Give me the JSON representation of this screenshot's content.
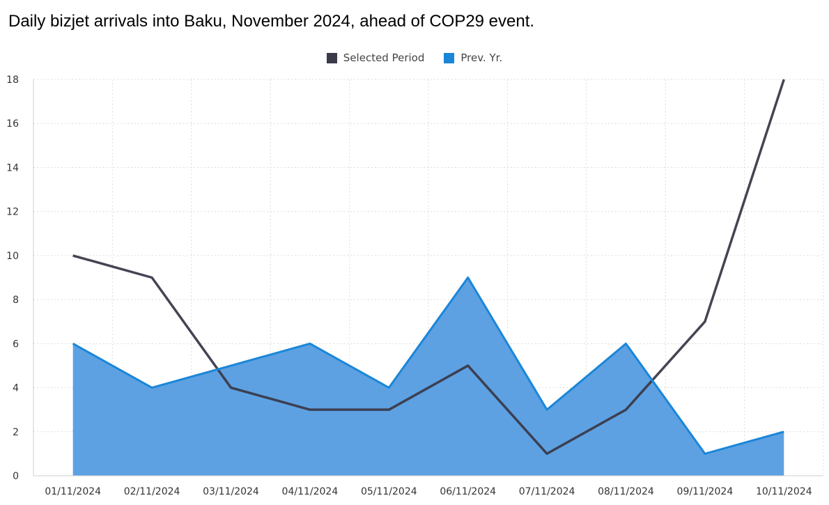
{
  "chart_data": {
    "type": "area",
    "title": "Daily bizjet arrivals into Baku, November 2024, ahead of COP29 event.",
    "categories": [
      "01/11/2024",
      "02/11/2024",
      "03/11/2024",
      "04/11/2024",
      "05/11/2024",
      "06/11/2024",
      "07/11/2024",
      "08/11/2024",
      "09/11/2024",
      "10/11/2024"
    ],
    "series": [
      {
        "name": "Selected Period",
        "type": "line",
        "color": "#3a3a4a",
        "values": [
          10,
          9,
          4,
          3,
          3,
          5,
          1,
          3,
          7,
          18
        ]
      },
      {
        "name": "Prev. Yr.",
        "type": "area",
        "color": "#1a86d8",
        "fill": "#5da1e2",
        "values": [
          6,
          4,
          5,
          6,
          4,
          9,
          3,
          6,
          1,
          2
        ]
      }
    ],
    "ylim": [
      0,
      18
    ],
    "yticks": [
      0,
      2,
      4,
      6,
      8,
      10,
      12,
      14,
      16,
      18
    ],
    "xlabel": "",
    "ylabel": "",
    "grid": true,
    "legend_position": "top-center"
  }
}
